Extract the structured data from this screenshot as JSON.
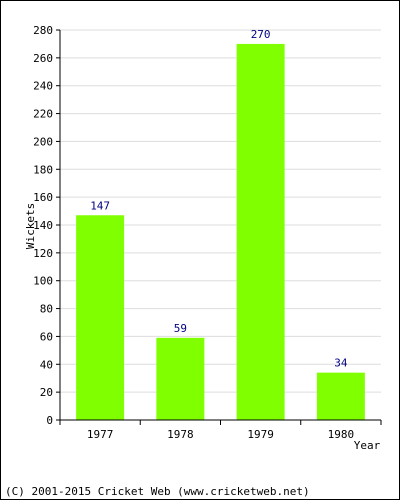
{
  "chart_data": {
    "type": "bar",
    "categories": [
      "1977",
      "1978",
      "1979",
      "1980"
    ],
    "values": [
      147,
      59,
      270,
      34
    ],
    "data_labels": [
      "147",
      "59",
      "270",
      "34"
    ],
    "ylabel": "Wickets",
    "xlabel": "Year",
    "ylim": [
      0,
      280
    ],
    "y_ticks": [
      0,
      20,
      40,
      60,
      80,
      100,
      120,
      140,
      160,
      180,
      200,
      220,
      240,
      260,
      280
    ],
    "grid": true,
    "bar_color": "#80ff00",
    "value_label_color": "#000080"
  },
  "footer": {
    "copyright": "(C) 2001-2015 Cricket Web (www.cricketweb.net)"
  }
}
